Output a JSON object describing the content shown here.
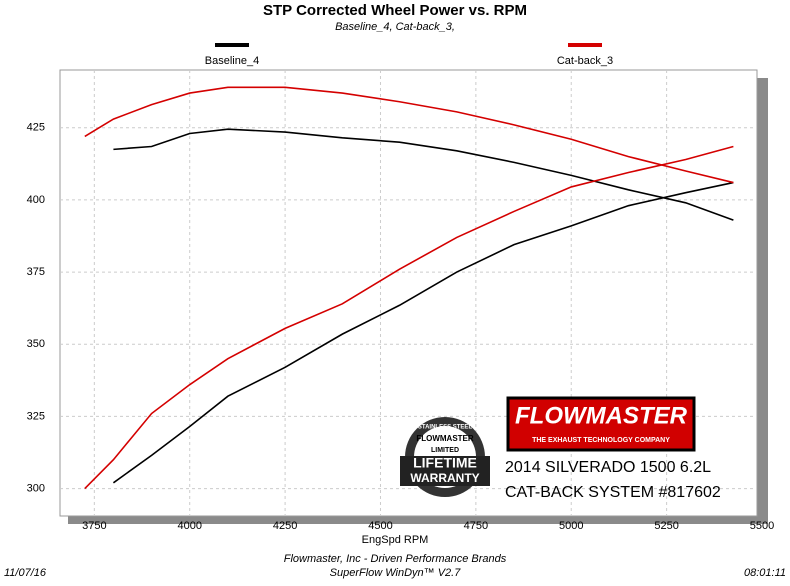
{
  "chart_data": {
    "type": "line",
    "title": "STP Corrected Wheel Power vs. RPM",
    "subtitle": "Baseline_4, Cat-back_3,",
    "x_label": "EngSpd RPM",
    "xlim": [
      3660,
      5500
    ],
    "xticks": [
      3750,
      4000,
      4250,
      4500,
      4750,
      5000,
      5250,
      5500
    ],
    "ylim": [
      290.5,
      445
    ],
    "yticks": [
      300,
      325,
      350,
      375,
      400,
      425
    ],
    "grid": true,
    "series": [
      {
        "name": "Baseline_4",
        "color": "#000000",
        "x": [
          3800,
          3900,
          4000,
          4100,
          4250,
          4400,
          4550,
          4700,
          4850,
          5000,
          5150,
          5300,
          5425
        ],
        "curves": [
          [
            417.5,
            418.5,
            423,
            424.5,
            423.5,
            421.5,
            420,
            417,
            413,
            408.5,
            403.5,
            399,
            393
          ],
          [
            302,
            311.5,
            321.5,
            332,
            342,
            353.5,
            363.5,
            375,
            384.5,
            391,
            398,
            402.5,
            406
          ]
        ]
      },
      {
        "name": "Cat-back_3",
        "color": "#d40000",
        "x": [
          3725,
          3800,
          3900,
          4000,
          4100,
          4250,
          4400,
          4550,
          4700,
          4850,
          5000,
          5150,
          5300,
          5425
        ],
        "curves": [
          [
            422,
            428,
            433,
            437,
            439,
            439,
            437,
            434,
            430.5,
            426,
            421,
            415,
            410,
            406
          ],
          [
            300,
            310,
            326,
            336,
            345,
            355.5,
            364,
            376,
            387,
            396,
            404.5,
            409.5,
            414,
            418.5
          ]
        ]
      }
    ],
    "annotations": {
      "logo": "FLOWMASTER",
      "tagline": "THE EXHAUST TECHNOLOGY COMPANY",
      "vehicle": "2014 SILVERADO 1500 6.2L",
      "system": "CAT-BACK SYSTEM #817602",
      "badge": [
        "STAINLESS STEEL",
        "FLOWMASTER",
        "LIMITED",
        "LIFETIME",
        "WARRANTY"
      ]
    },
    "footer": {
      "date": "11/07/16",
      "company": "Flowmaster, Inc - Driven Performance Brands",
      "software": "SuperFlow WinDyn™ V2.7",
      "time": "08:01:11"
    }
  }
}
